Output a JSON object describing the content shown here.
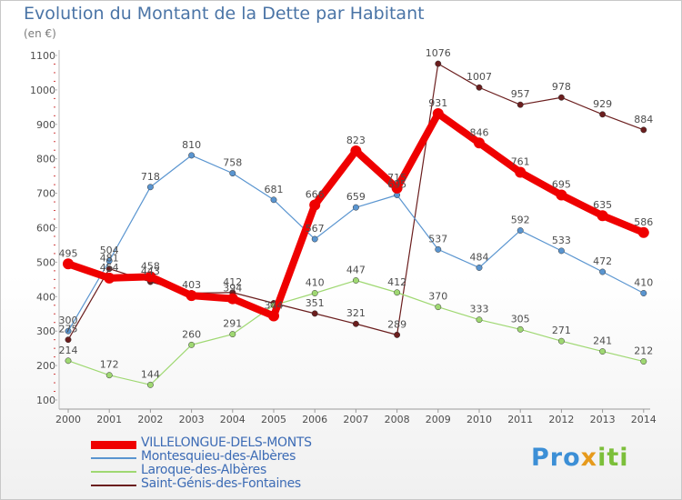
{
  "title": "Evolution du Montant de la Dette par Habitant",
  "unit": "(en €)",
  "logo": {
    "part1": "Pro",
    "part2": "x",
    "part3": "iti"
  },
  "chart_data": {
    "type": "line",
    "x": [
      2000,
      2001,
      2002,
      2003,
      2004,
      2005,
      2006,
      2007,
      2008,
      2009,
      2010,
      2011,
      2012,
      2013,
      2014
    ],
    "ylim": [
      100,
      1100
    ],
    "yticks": [
      100,
      200,
      300,
      400,
      500,
      600,
      700,
      800,
      900,
      1000,
      1100
    ],
    "grid": false,
    "legend_position": "bottom-left",
    "series": [
      {
        "name": "Saint-Génis-des-Fontaines",
        "color": "#6b1e1e",
        "width": 1.2,
        "marker": 3.2,
        "values": [
          275,
          481,
          443,
          410,
          412,
          381,
          351,
          321,
          289,
          1076,
          1007,
          957,
          978,
          929,
          884
        ],
        "labels": [
          "275",
          "481",
          "443",
          "",
          "412",
          "",
          "351",
          "321",
          "289",
          "1076",
          "1007",
          "957",
          "978",
          "929",
          "884"
        ]
      },
      {
        "name": "Laroque-des-Albères",
        "color": "#9fd872",
        "width": 1.2,
        "marker": 3.2,
        "values": [
          214,
          172,
          144,
          260,
          291,
          375,
          410,
          447,
          412,
          370,
          333,
          305,
          271,
          241,
          212
        ],
        "labels": [
          "214",
          "172",
          "144",
          "260",
          "291",
          "",
          "410",
          "447",
          "412",
          "370",
          "333",
          "305",
          "271",
          "241",
          "212"
        ]
      },
      {
        "name": "Montesquieu-des-Albères",
        "color": "#5a95d0",
        "width": 1.2,
        "marker": 3.2,
        "values": [
          300,
          504,
          718,
          810,
          758,
          681,
          567,
          659,
          695,
          537,
          484,
          592,
          533,
          472,
          410
        ],
        "labels": [
          "300",
          "504",
          "718",
          "810",
          "758",
          "681",
          "567",
          "659",
          "695",
          "537",
          "484",
          "592",
          "533",
          "472",
          "410"
        ]
      },
      {
        "name": "VILLELONGUE-DELS-MONTS",
        "color": "#ef0000",
        "width": 8,
        "marker": 6,
        "values": [
          495,
          454,
          458,
          403,
          394,
          344,
          666,
          823,
          715,
          931,
          846,
          761,
          695,
          635,
          586
        ],
        "labels": [
          "495",
          "454",
          "458",
          "403",
          "394",
          "344",
          "666",
          "823",
          "715",
          "931",
          "846",
          "761",
          "695",
          "635",
          "586"
        ]
      }
    ],
    "legend_order": [
      "VILLELONGUE-DELS-MONTS",
      "Montesquieu-des-Albères",
      "Laroque-des-Albères",
      "Saint-Génis-des-Fontaines"
    ]
  }
}
